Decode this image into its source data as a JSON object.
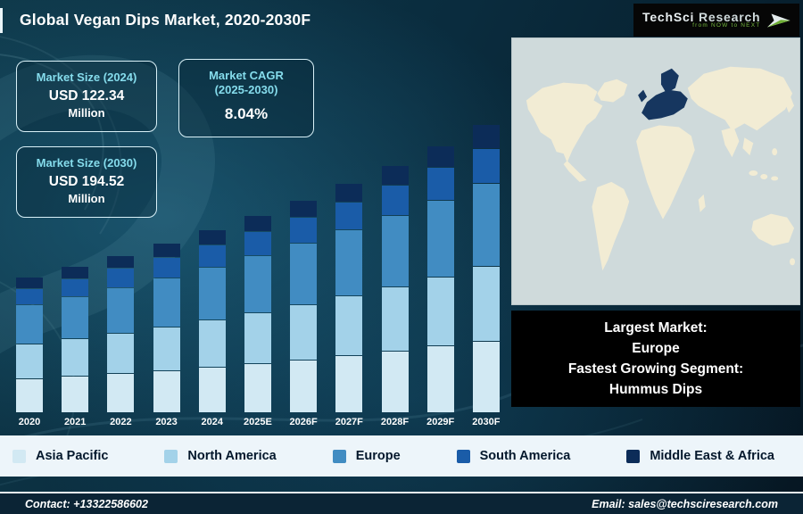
{
  "header": {
    "title": "Global Vegan Dips Market, 2020-2030F",
    "logo": {
      "brand_primary": "TechSci",
      "brand_secondary": "Research",
      "tagline": "from NOW to NEXT"
    }
  },
  "info_boxes": [
    {
      "label": "Market Size (2024)",
      "value": "USD 122.34",
      "unit": "Million"
    },
    {
      "label": "Market CAGR",
      "label2": "(2025-2030)",
      "value": "8.04%"
    },
    {
      "label": "Market Size (2030)",
      "value": "USD 194.52",
      "unit": "Million"
    }
  ],
  "chart_data": {
    "type": "bar",
    "stacked": true,
    "title": "Global Vegan Dips Market, 2020-2030F",
    "categories": [
      "2020",
      "2021",
      "2022",
      "2023",
      "2024",
      "2025E",
      "2026F",
      "2027F",
      "2028F",
      "2029F",
      "2030F"
    ],
    "series": [
      {
        "name": "Asia Pacific",
        "color": "#d2e9f3",
        "values": [
          22.5,
          24.3,
          26.2,
          28.3,
          30.6,
          33.0,
          35.7,
          38.6,
          41.7,
          45.0,
          48.6
        ]
      },
      {
        "name": "North America",
        "color": "#a3d2e9",
        "values": [
          23.4,
          25.2,
          27.3,
          29.5,
          31.8,
          34.4,
          37.1,
          40.1,
          43.3,
          46.8,
          50.6
        ]
      },
      {
        "name": "Europe",
        "color": "#418cc2",
        "values": [
          26.1,
          28.2,
          30.4,
          32.9,
          35.5,
          38.3,
          41.4,
          44.7,
          48.3,
          52.2,
          56.4
        ]
      },
      {
        "name": "South America",
        "color": "#1a5ca8",
        "values": [
          10.8,
          11.7,
          12.6,
          13.6,
          14.7,
          15.9,
          17.1,
          18.5,
          20.0,
          21.6,
          23.3
        ]
      },
      {
        "name": "Middle East & Africa",
        "color": "#0c2c58",
        "values": [
          7.2,
          7.8,
          8.4,
          9.1,
          9.8,
          10.6,
          11.4,
          12.3,
          13.3,
          14.4,
          15.6
        ]
      }
    ],
    "totals_usd_million": [
      90.0,
      97.2,
      104.9,
      113.4,
      122.34,
      132.2,
      142.7,
      154.2,
      166.6,
      180.0,
      194.52
    ],
    "ylim": [
      0,
      200
    ],
    "grid": false,
    "legend_position": "bottom"
  },
  "map": {
    "highlighted_region": "Europe"
  },
  "callout": {
    "lines": [
      "Largest Market:",
      "Europe",
      "Fastest Growing Segment:",
      "Hummus Dips"
    ]
  },
  "footer": {
    "contact": "Contact: +13322586602",
    "email": "Email: sales@techsciresearch.com"
  }
}
